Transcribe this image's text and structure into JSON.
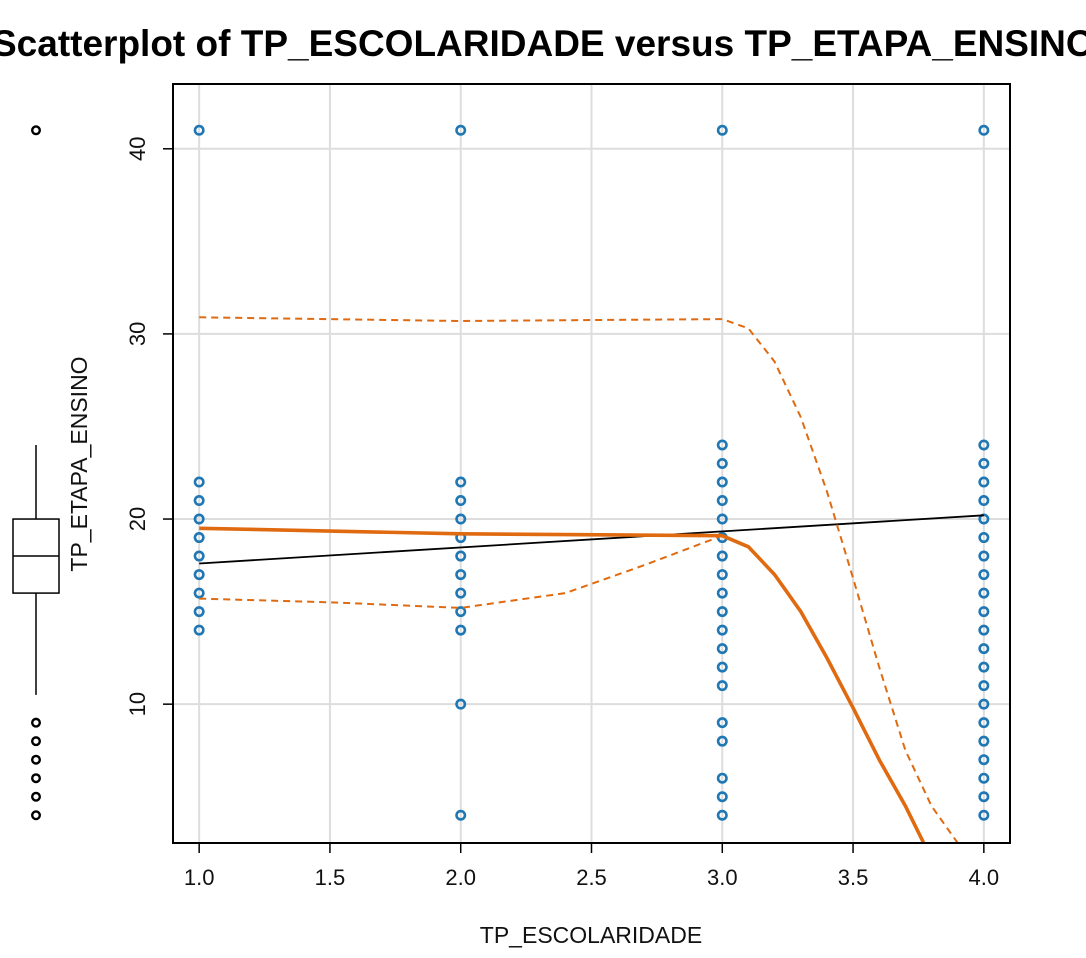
{
  "chart_data": {
    "type": "scatter",
    "title": "Scatterplot of TP_ESCOLARIDADE versus TP_ETAPA_ENSINO",
    "xlabel": "TP_ESCOLARIDADE",
    "ylabel": "TP_ETAPA_ENSINO",
    "xlim": [
      0.9,
      4.1
    ],
    "ylim": [
      2.5,
      43.5
    ],
    "x_ticks": [
      "1.0",
      "1.5",
      "2.0",
      "2.5",
      "3.0",
      "3.5",
      "4.0"
    ],
    "x_tick_values": [
      1.0,
      1.5,
      2.0,
      2.5,
      3.0,
      3.5,
      4.0
    ],
    "y_ticks": [
      "10",
      "20",
      "30",
      "40"
    ],
    "y_tick_values": [
      10,
      20,
      30,
      40
    ],
    "grid": true,
    "colors": {
      "points": "#1f77b4",
      "smooth": "#e06a10",
      "regression": "#000000",
      "grid": "#dddddd",
      "boxplot": "#000000"
    },
    "points": [
      {
        "x": 1,
        "y": [
          41,
          22,
          21,
          20,
          19,
          18,
          17,
          16,
          15,
          14
        ]
      },
      {
        "x": 2,
        "y": [
          41,
          22,
          21,
          20,
          19,
          18,
          17,
          16,
          15,
          14,
          10,
          4
        ]
      },
      {
        "x": 3,
        "y": [
          41,
          24,
          23,
          22,
          21,
          20,
          19,
          18,
          17,
          16,
          15,
          14,
          13,
          12,
          11,
          9,
          8,
          6,
          5,
          4
        ]
      },
      {
        "x": 4,
        "y": [
          41,
          24,
          23,
          22,
          21,
          20,
          19,
          18,
          17,
          16,
          15,
          14,
          13,
          12,
          11,
          10,
          9,
          8,
          7,
          6,
          5,
          4
        ]
      }
    ],
    "regression_line": [
      [
        1.0,
        17.6
      ],
      [
        4.0,
        20.2
      ]
    ],
    "smooth_line": [
      [
        1.0,
        19.5
      ],
      [
        2.0,
        19.2
      ],
      [
        3.0,
        19.1
      ],
      [
        3.1,
        18.5
      ],
      [
        3.2,
        17.0
      ],
      [
        3.3,
        15.0
      ],
      [
        3.4,
        12.5
      ],
      [
        3.5,
        9.8
      ],
      [
        3.6,
        7.0
      ],
      [
        3.7,
        4.5
      ],
      [
        3.77,
        2.5
      ]
    ],
    "smooth_upper": [
      [
        1.0,
        30.9
      ],
      [
        2.0,
        30.7
      ],
      [
        3.0,
        30.8
      ],
      [
        3.1,
        30.3
      ],
      [
        3.2,
        28.5
      ],
      [
        3.3,
        25.5
      ],
      [
        3.4,
        21.5
      ],
      [
        3.5,
        16.8
      ],
      [
        3.6,
        12.0
      ],
      [
        3.7,
        7.5
      ],
      [
        3.8,
        4.5
      ],
      [
        3.9,
        2.5
      ]
    ],
    "smooth_lower": [
      [
        1.0,
        15.7
      ],
      [
        1.5,
        15.5
      ],
      [
        2.0,
        15.2
      ],
      [
        2.4,
        16.0
      ],
      [
        2.7,
        17.5
      ],
      [
        3.0,
        19.1
      ]
    ],
    "boxplot": {
      "orientation": "vertical",
      "whisker_low": 10.5,
      "q1": 16,
      "median": 18,
      "q3": 20,
      "whisker_high": 24,
      "outliers": [
        41,
        9,
        8,
        7,
        6,
        5,
        4
      ]
    }
  }
}
